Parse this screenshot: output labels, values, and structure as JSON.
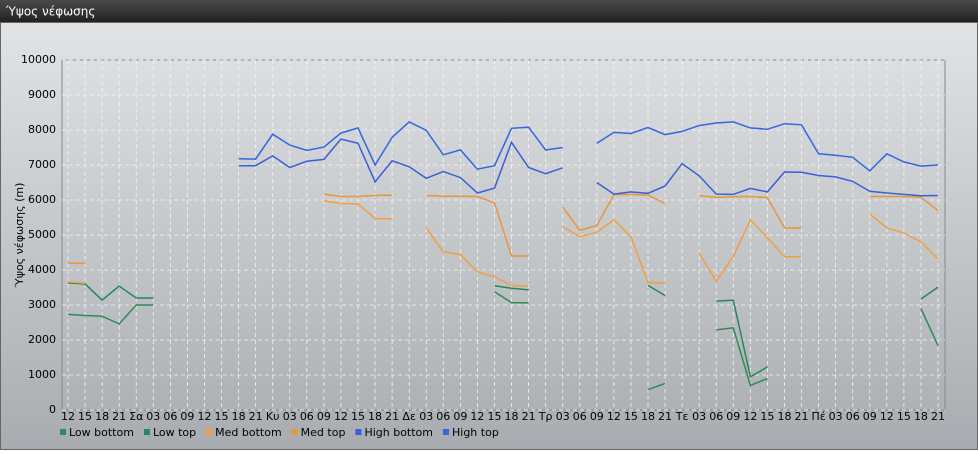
{
  "chart_data": {
    "type": "line",
    "title": "Ύψος νέφωσης",
    "ylabel": "Ύψος νέφωσης (m)",
    "categories": [
      "12",
      "15",
      "18",
      "21",
      "Σα",
      "03",
      "06",
      "09",
      "12",
      "15",
      "18",
      "21",
      "Κυ",
      "03",
      "06",
      "09",
      "12",
      "15",
      "18",
      "21",
      "Δε",
      "03",
      "06",
      "09",
      "12",
      "15",
      "18",
      "21",
      "Τρ",
      "03",
      "06",
      "09",
      "12",
      "15",
      "18",
      "21",
      "Τε",
      "03",
      "06",
      "09",
      "12",
      "15",
      "18",
      "21",
      "Πέ",
      "03",
      "06",
      "09",
      "12",
      "15",
      "18",
      "21"
    ],
    "ylim": [
      0,
      10000
    ],
    "yticks": [
      0,
      1000,
      2000,
      3000,
      4000,
      5000,
      6000,
      7000,
      8000,
      9000,
      10000
    ],
    "grid": true,
    "series": [
      {
        "name": "Low bottom",
        "color": "#2e8b57",
        "values": [
          2730,
          2700,
          2680,
          2460,
          3000,
          3000,
          null,
          null,
          null,
          null,
          null,
          null,
          null,
          null,
          null,
          null,
          null,
          null,
          null,
          null,
          null,
          null,
          null,
          null,
          null,
          3380,
          3070,
          3060,
          null,
          null,
          null,
          null,
          null,
          null,
          580,
          760,
          null,
          null,
          2290,
          2350,
          700,
          900,
          null,
          null,
          null,
          null,
          null,
          null,
          null,
          null,
          2900,
          1840
        ]
      },
      {
        "name": "Low top",
        "color": "#24875f",
        "values": [
          3630,
          3600,
          3140,
          3540,
          3200,
          3200,
          null,
          null,
          null,
          null,
          null,
          null,
          null,
          null,
          null,
          null,
          null,
          null,
          null,
          null,
          null,
          null,
          null,
          null,
          null,
          3550,
          3480,
          3430,
          null,
          null,
          null,
          null,
          null,
          null,
          3560,
          3270,
          null,
          null,
          3110,
          3140,
          950,
          1230,
          null,
          null,
          null,
          null,
          null,
          null,
          null,
          null,
          3170,
          3510
        ]
      },
      {
        "name": "Med bottom",
        "color": "#f0a040",
        "values": [
          3660,
          3620,
          null,
          null,
          null,
          null,
          null,
          null,
          null,
          null,
          null,
          null,
          null,
          null,
          null,
          5980,
          5900,
          5890,
          5470,
          5460,
          null,
          5200,
          4520,
          4440,
          3950,
          3800,
          3560,
          3540,
          null,
          5240,
          4950,
          5080,
          5430,
          4950,
          3650,
          3620,
          null,
          4480,
          3680,
          4390,
          5430,
          4920,
          4380,
          4380,
          null,
          null,
          null,
          5600,
          5200,
          5060,
          4800,
          4320
        ]
      },
      {
        "name": "Med top",
        "color": "#e8963a",
        "values": [
          4200,
          4190,
          null,
          null,
          null,
          null,
          null,
          null,
          null,
          null,
          null,
          null,
          null,
          null,
          null,
          6170,
          6100,
          6100,
          6130,
          6140,
          null,
          6130,
          6110,
          6110,
          6100,
          5920,
          4400,
          4400,
          null,
          5800,
          5130,
          5270,
          6150,
          6160,
          6140,
          5900,
          null,
          6120,
          6080,
          6090,
          6100,
          6070,
          5200,
          5200,
          null,
          null,
          null,
          6100,
          6100,
          6100,
          6080,
          5700
        ]
      },
      {
        "name": "High bottom",
        "color": "#3a5fd6",
        "values": [
          null,
          null,
          null,
          null,
          null,
          null,
          null,
          null,
          null,
          null,
          6980,
          6980,
          7260,
          6930,
          7110,
          7160,
          7740,
          7620,
          6520,
          7120,
          6950,
          6620,
          6810,
          6640,
          6200,
          6340,
          7650,
          6930,
          6750,
          6920,
          null,
          6500,
          6170,
          6230,
          6190,
          6400,
          7040,
          6690,
          6170,
          6160,
          6330,
          6230,
          6800,
          6790,
          6700,
          6660,
          6530,
          6250,
          6200,
          6160,
          6120,
          6130
        ]
      },
      {
        "name": "High top",
        "color": "#3366e0",
        "values": [
          null,
          null,
          null,
          null,
          null,
          null,
          null,
          null,
          null,
          null,
          7180,
          7170,
          7880,
          7570,
          7420,
          7510,
          7910,
          8060,
          7000,
          7790,
          8230,
          7990,
          7290,
          7430,
          6880,
          6980,
          8050,
          8080,
          7430,
          7500,
          null,
          7620,
          7930,
          7900,
          8070,
          7870,
          7960,
          8130,
          8200,
          8230,
          8060,
          8020,
          8180,
          8150,
          7320,
          7280,
          7220,
          6830,
          7320,
          7090,
          6970,
          7000
        ]
      }
    ]
  }
}
